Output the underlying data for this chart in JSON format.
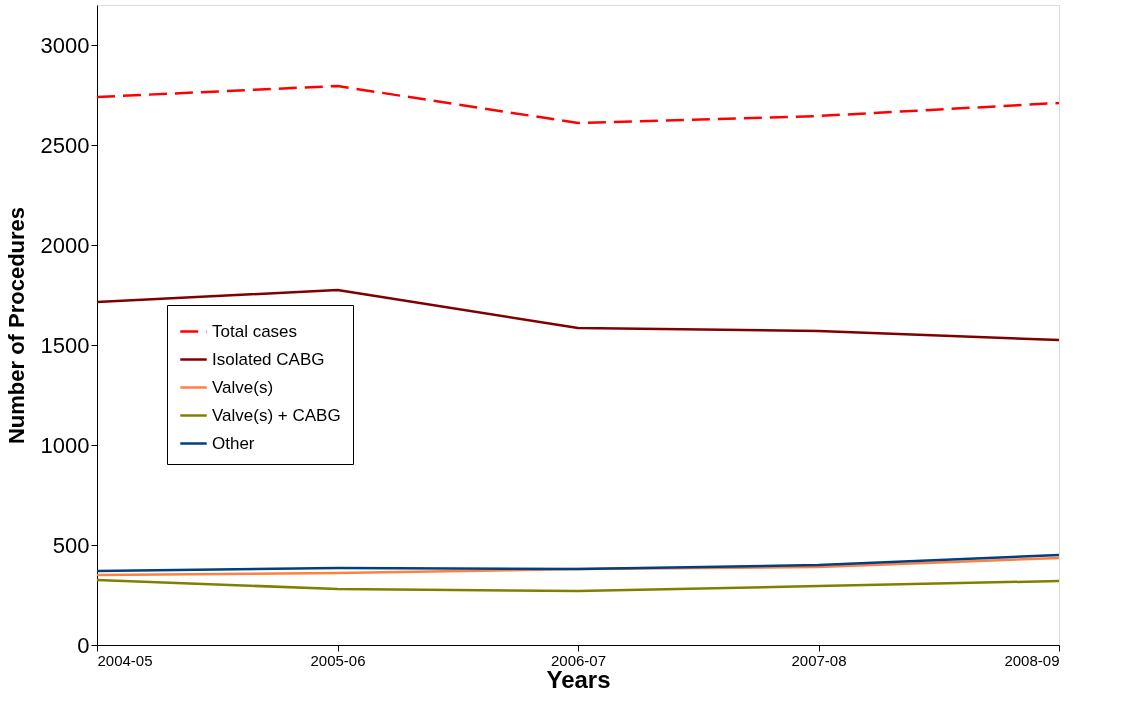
{
  "chart_data": {
    "type": "line",
    "xlabel": "Years",
    "ylabel": "Number of Procedures",
    "categories": [
      "2004-05",
      "2005-06",
      "2006-07",
      "2007-08",
      "2008-09"
    ],
    "ylim": [
      0,
      3200
    ],
    "yticks": [
      0,
      500,
      1000,
      1500,
      2000,
      2500,
      3000
    ],
    "grid": false,
    "legend": "left",
    "marker": "none",
    "series": [
      {
        "name": "Total cases",
        "color": "#ff0000",
        "line_style": "dashed",
        "values": [
          2740,
          2795,
          2610,
          2645,
          2710
        ]
      },
      {
        "name": "Isolated CABG",
        "color": "#800000",
        "line_style": "solid",
        "values": [
          1715,
          1775,
          1585,
          1570,
          1525
        ]
      },
      {
        "name": "Valve(s)",
        "color": "#ff8040",
        "line_style": "solid",
        "values": [
          350,
          360,
          380,
          390,
          435
        ]
      },
      {
        "name": "Valve(s) + CABG",
        "color": "#808000",
        "line_style": "solid",
        "values": [
          325,
          280,
          270,
          295,
          320
        ]
      },
      {
        "name": "Other",
        "color": "#004080",
        "line_style": "solid",
        "values": [
          370,
          385,
          380,
          400,
          450
        ]
      }
    ]
  }
}
